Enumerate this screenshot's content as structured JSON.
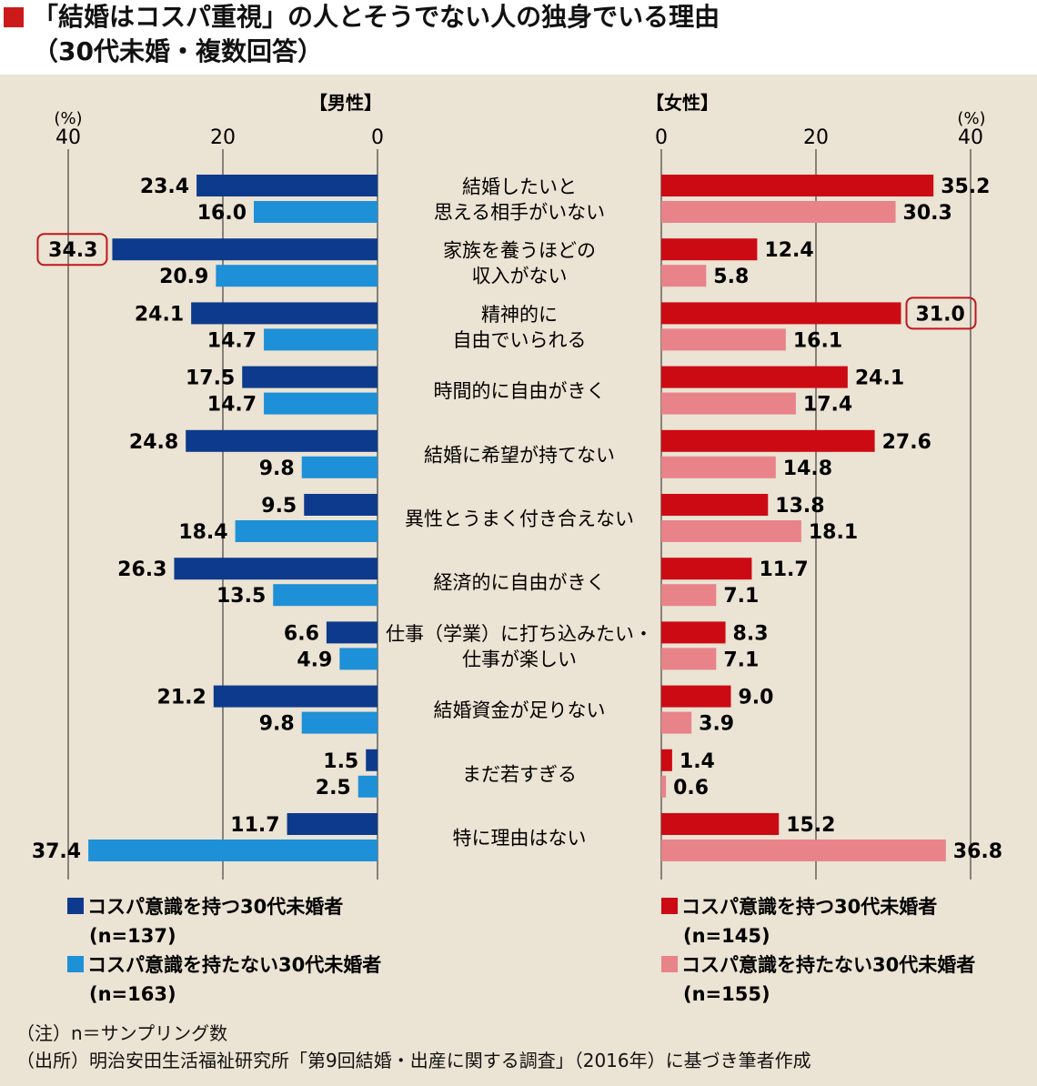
{
  "title_line1": "「結婚はコスパ重視」の人とそうでない人の独身でいる理由",
  "title_line2": "（30代未婚・複数回答）",
  "colors": {
    "title_mark": "#cc1a1a",
    "male_cospa": "#0d3a8c",
    "male_non": "#1e90d8",
    "female_cospa": "#cc0a14",
    "female_non": "#e8838a",
    "highlight_border": "#c0161c",
    "background": "#ebe3d3"
  },
  "chart_data": {
    "type": "bar",
    "orientation": "horizontal-butterfly",
    "unit_label": "(%)",
    "panels": [
      {
        "label": "【男性】",
        "direction": "left",
        "ticks": [
          40,
          20,
          0
        ],
        "xlim": [
          0,
          40
        ]
      },
      {
        "label": "【女性】",
        "direction": "right",
        "ticks": [
          0,
          20,
          40
        ],
        "xlim": [
          0,
          40
        ]
      }
    ],
    "categories": [
      [
        "結婚したいと",
        "思える相手がいない"
      ],
      [
        "家族を養うほどの",
        "収入がない"
      ],
      [
        "精神的に",
        "自由でいられる"
      ],
      [
        "時間的に自由がきく"
      ],
      [
        "結婚に希望が持てない"
      ],
      [
        "異性とうまく付き合えない"
      ],
      [
        "経済的に自由がきく"
      ],
      [
        "仕事（学業）に打ち込みたい・",
        "仕事が楽しい"
      ],
      [
        "結婚資金が足りない"
      ],
      [
        "まだ若すぎる"
      ],
      [
        "特に理由はない"
      ]
    ],
    "male": [
      {
        "name": "コスパ意識を持つ30代未婚者",
        "n": "(n=137)",
        "values": [
          23.4,
          34.3,
          24.1,
          17.5,
          24.8,
          9.5,
          26.3,
          6.6,
          21.2,
          1.5,
          11.7
        ],
        "labels": [
          "23.4",
          "34.3",
          "24.1",
          "17.5",
          "24.8",
          "9.5",
          "26.3",
          "6.6",
          "21.2",
          "1.5",
          "11.7"
        ]
      },
      {
        "name": "コスパ意識を持たない30代未婚者",
        "n": "(n=163)",
        "values": [
          16.0,
          20.9,
          14.7,
          14.7,
          9.8,
          18.4,
          13.5,
          4.9,
          9.8,
          2.5,
          37.4
        ],
        "labels": [
          "16.0",
          "20.9",
          "14.7",
          "14.7",
          "9.8",
          "18.4",
          "13.5",
          "4.9",
          "9.8",
          "2.5",
          "37.4"
        ]
      }
    ],
    "female": [
      {
        "name": "コスパ意識を持つ30代未婚者",
        "n": "(n=145)",
        "values": [
          35.2,
          12.4,
          31.0,
          24.1,
          27.6,
          13.8,
          11.7,
          8.3,
          9.0,
          1.4,
          15.2
        ],
        "labels": [
          "35.2",
          "12.4",
          "31.0",
          "24.1",
          "27.6",
          "13.8",
          "11.7",
          "8.3",
          "9.0",
          "1.4",
          "15.2"
        ]
      },
      {
        "name": "コスパ意識を持たない30代未婚者",
        "n": "(n=155)",
        "values": [
          30.3,
          5.8,
          16.1,
          17.4,
          14.8,
          18.1,
          7.1,
          7.1,
          3.9,
          0.6,
          36.8
        ],
        "labels": [
          "30.3",
          "5.8",
          "16.1",
          "17.4",
          "14.8",
          "18.1",
          "7.1",
          "7.1",
          "3.9",
          "0.6",
          "36.8"
        ]
      }
    ],
    "highlighted": [
      {
        "panel": "male",
        "series": 0,
        "index": 1
      },
      {
        "panel": "female",
        "series": 0,
        "index": 2
      }
    ]
  },
  "notes": {
    "note": "（注）n＝サンプリング数",
    "source": "（出所）明治安田生活福祉研究所「第9回結婚・出産に関する調査」（2016年）に基づき筆者作成"
  }
}
